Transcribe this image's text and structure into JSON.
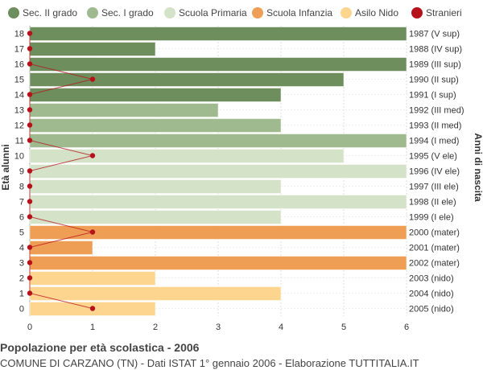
{
  "chart_data": {
    "type": "bar",
    "orientation": "horizontal",
    "title": "Popolazione per età scolastica - 2006",
    "subtitle": "COMUNE DI CARZANO (TN) - Dati ISTAT 1° gennaio 2006 - Elaborazione TUTTITALIA.IT",
    "ylabel_left": "Età alunni",
    "ylabel_right": "Anni di nascita",
    "xlim": [
      0,
      6
    ],
    "x_ticks": [
      "0",
      "1",
      "2",
      "3",
      "4",
      "5",
      "6"
    ],
    "grid": true,
    "legend_position": "top",
    "legend": [
      {
        "name": "Sec. II grado",
        "color": "#6e8f5d"
      },
      {
        "name": "Sec. I grado",
        "color": "#9fba8f"
      },
      {
        "name": "Scuola Primaria",
        "color": "#d4e2c7"
      },
      {
        "name": "Scuola Infanzia",
        "color": "#ee9f55"
      },
      {
        "name": "Asilo Nido",
        "color": "#fdd58f"
      },
      {
        "name": "Stranieri",
        "color": "#b5121b"
      }
    ],
    "rows": [
      {
        "age": "18",
        "birth": "1987 (V sup)",
        "value": 6,
        "stranieri": 0,
        "group": 0
      },
      {
        "age": "17",
        "birth": "1988 (IV sup)",
        "value": 2,
        "stranieri": 0,
        "group": 0
      },
      {
        "age": "16",
        "birth": "1989 (III sup)",
        "value": 6,
        "stranieri": 0,
        "group": 0
      },
      {
        "age": "15",
        "birth": "1990 (II sup)",
        "value": 5,
        "stranieri": 1,
        "group": 0
      },
      {
        "age": "14",
        "birth": "1991 (I sup)",
        "value": 4,
        "stranieri": 0,
        "group": 0
      },
      {
        "age": "13",
        "birth": "1992 (III med)",
        "value": 3,
        "stranieri": 0,
        "group": 1
      },
      {
        "age": "12",
        "birth": "1993 (II med)",
        "value": 4,
        "stranieri": 0,
        "group": 1
      },
      {
        "age": "11",
        "birth": "1994 (I med)",
        "value": 6,
        "stranieri": 0,
        "group": 1
      },
      {
        "age": "10",
        "birth": "1995 (V ele)",
        "value": 5,
        "stranieri": 1,
        "group": 2
      },
      {
        "age": "9",
        "birth": "1996 (IV ele)",
        "value": 6,
        "stranieri": 0,
        "group": 2
      },
      {
        "age": "8",
        "birth": "1997 (III ele)",
        "value": 4,
        "stranieri": 0,
        "group": 2
      },
      {
        "age": "7",
        "birth": "1998 (II ele)",
        "value": 6,
        "stranieri": 0,
        "group": 2
      },
      {
        "age": "6",
        "birth": "1999 (I ele)",
        "value": 4,
        "stranieri": 0,
        "group": 2
      },
      {
        "age": "5",
        "birth": "2000 (mater)",
        "value": 6,
        "stranieri": 1,
        "group": 3
      },
      {
        "age": "4",
        "birth": "2001 (mater)",
        "value": 1,
        "stranieri": 0,
        "group": 3
      },
      {
        "age": "3",
        "birth": "2002 (mater)",
        "value": 6,
        "stranieri": 0,
        "group": 3
      },
      {
        "age": "2",
        "birth": "2003 (nido)",
        "value": 2,
        "stranieri": 0,
        "group": 4
      },
      {
        "age": "1",
        "birth": "2004 (nido)",
        "value": 4,
        "stranieri": 0,
        "group": 4
      },
      {
        "age": "0",
        "birth": "2005 (nido)",
        "value": 2,
        "stranieri": 1,
        "group": 4
      }
    ]
  }
}
